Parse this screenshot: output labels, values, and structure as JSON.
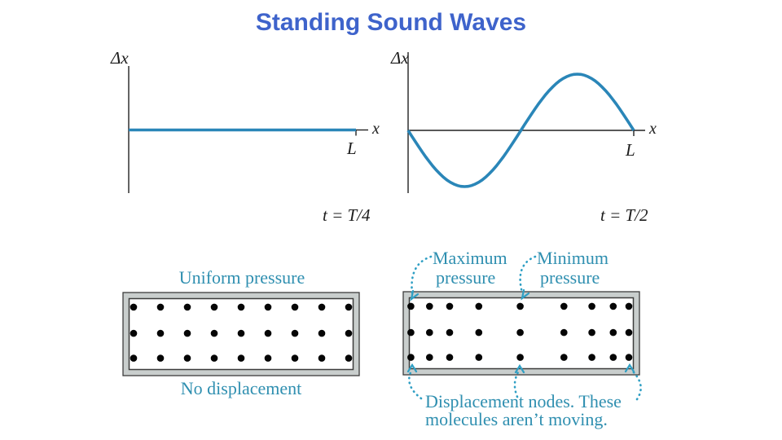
{
  "title": {
    "text": "Standing Sound Waves"
  },
  "colors": {
    "title": "#3e63cb",
    "wave": "#2a86b8",
    "caption": "#2f8fb0",
    "arrow": "#2f9fc4",
    "axis": "#222222",
    "dot": "#050505",
    "tube_frame_fill": "#c9cecd",
    "tube_frame_border": "#3c3c3c"
  },
  "graphs": {
    "left": {
      "y_axis_label": "Δx",
      "x_axis_label": "x",
      "end_tick_label": "L",
      "time_label": "t = T/4"
    },
    "right": {
      "y_axis_label": "Δx",
      "x_axis_label": "x",
      "end_tick_label": "L",
      "time_label": "t = T/2"
    }
  },
  "chart_data": [
    {
      "type": "line",
      "title": "Air displacement vs position at t = T/4",
      "xlabel": "x",
      "ylabel": "Δx",
      "x_range": [
        "0",
        "L"
      ],
      "equation": "Δx(x) = 0 (flat line, all molecules momentarily at equilibrium)",
      "cycles": 0,
      "amplitude": 0
    },
    {
      "type": "line",
      "title": "Air displacement vs position at t = T/2",
      "xlabel": "x",
      "ylabel": "Δx",
      "x_range": [
        "0",
        "L"
      ],
      "equation": "Δx(x) = -A·sin(2πx/L), one full cycle: trough at x = L/4, node at x = L/2, crest at x = 3L/4",
      "cycles": 1,
      "amplitude": -1
    }
  ],
  "tubes": {
    "left": {
      "top_caption": "Uniform pressure",
      "bottom_caption": "No displacement",
      "rows": 3,
      "dot_fracs": [
        0.02,
        0.14,
        0.26,
        0.38,
        0.5,
        0.62,
        0.74,
        0.86,
        0.98
      ],
      "row_fracs": [
        0.12,
        0.49,
        0.84
      ]
    },
    "right": {
      "max_pressure_label_line1": "Maximum",
      "max_pressure_label_line2": "pressure",
      "min_pressure_label_line1": "Minimum",
      "min_pressure_label_line2": "pressure",
      "bottom_caption_line1": "Displacement nodes. These",
      "bottom_caption_line2": "molecules aren’t moving.",
      "rows": 3,
      "dot_fracs": [
        0.007,
        0.09,
        0.18,
        0.31,
        0.495,
        0.69,
        0.815,
        0.91,
        0.98
      ],
      "row_fracs": [
        0.12,
        0.49,
        0.84
      ]
    }
  }
}
